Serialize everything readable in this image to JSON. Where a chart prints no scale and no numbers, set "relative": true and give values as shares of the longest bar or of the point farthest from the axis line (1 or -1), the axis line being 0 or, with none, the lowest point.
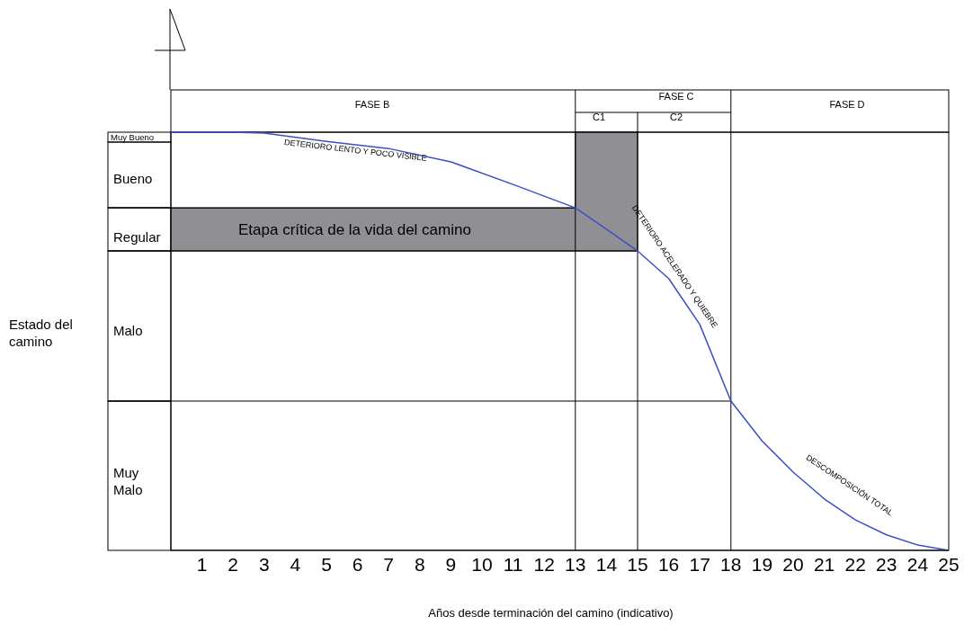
{
  "chart_data": {
    "type": "line",
    "xlabel": "Años desde terminación del camino (indicativo)",
    "relative": true,
    "marker": "none",
    "x": [
      0,
      2,
      3,
      5,
      7,
      9,
      11,
      13,
      14,
      15,
      16,
      17,
      18,
      19,
      20,
      21,
      22,
      23,
      24,
      25
    ],
    "series": [
      {
        "color": "#3a4fc8",
        "values": [
          1,
          1,
          0.998,
          0.978,
          0.961,
          0.929,
          0.875,
          0.819,
          0.768,
          0.716,
          0.65,
          0.54,
          0.357,
          0.262,
          0.187,
          0.123,
          0.073,
          0.037,
          0.013,
          0
        ]
      }
    ],
    "xlim": [
      0,
      25
    ],
    "xticks": [
      1,
      2,
      3,
      4,
      5,
      6,
      7,
      8,
      9,
      10,
      11,
      12,
      13,
      14,
      15,
      16,
      17,
      18,
      19,
      20,
      21,
      22,
      23,
      24,
      25
    ],
    "ref_lines": [
      {
        "axis": "x",
        "value": 13
      },
      {
        "axis": "x",
        "value": 15
      },
      {
        "axis": "x",
        "value": 18
      },
      {
        "axis": "y",
        "value": 0.819
      },
      {
        "axis": "y",
        "value": 0.716
      },
      {
        "axis": "y",
        "value": 0.357
      }
    ],
    "annotations": [
      "FASE B",
      "FASE C",
      "C1",
      "C2",
      "FASE D",
      "Muy Bueno",
      "Bueno",
      "Regular",
      "Malo",
      "Muy Malo",
      "Etapa crítica de la vida del camino",
      "DETERIORO LENTO Y POCO VISIBLE",
      "DETERIORO ACELERADO Y QUIEBRE",
      "DESCOMPOSICIÓN TOTAL",
      "Estado del camino"
    ]
  }
}
